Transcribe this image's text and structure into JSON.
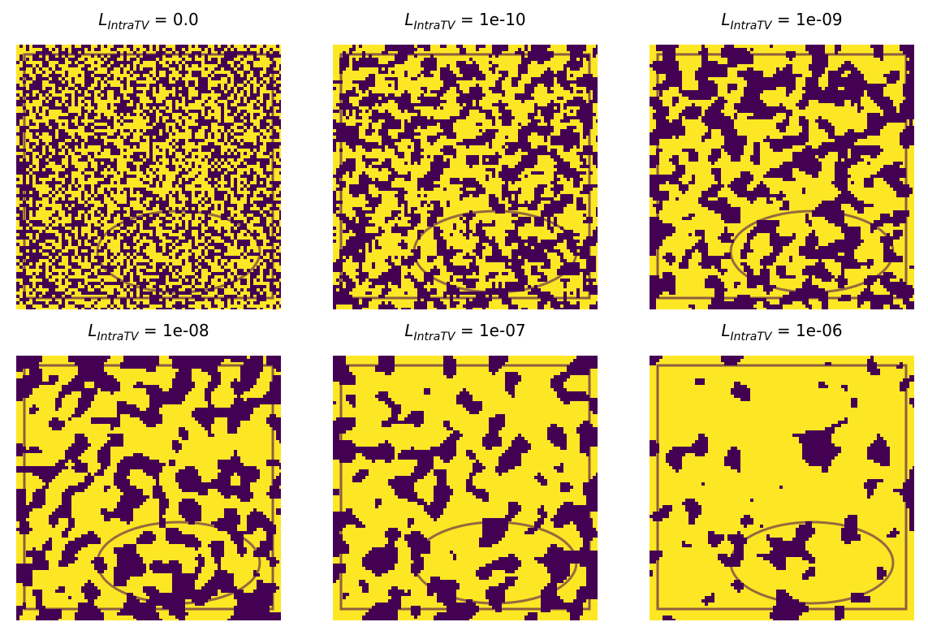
{
  "colors": {
    "low": "#440154",
    "high": "#fde725",
    "background": "#ffffff"
  },
  "panels": [
    {
      "symbol": "L",
      "subscript": "IntraTV",
      "value": "0.0",
      "dark_fraction": 0.48
    },
    {
      "symbol": "L",
      "subscript": "IntraTV",
      "value": "1e-10",
      "dark_fraction": 0.45
    },
    {
      "symbol": "L",
      "subscript": "IntraTV",
      "value": "1e-09",
      "dark_fraction": 0.44
    },
    {
      "symbol": "L",
      "subscript": "IntraTV",
      "value": "1e-08",
      "dark_fraction": 0.42
    },
    {
      "symbol": "L",
      "subscript": "IntraTV",
      "value": "1e-07",
      "dark_fraction": 0.32
    },
    {
      "symbol": "L",
      "subscript": "IntraTV",
      "value": "1e-06",
      "dark_fraction": 0.14
    }
  ]
}
